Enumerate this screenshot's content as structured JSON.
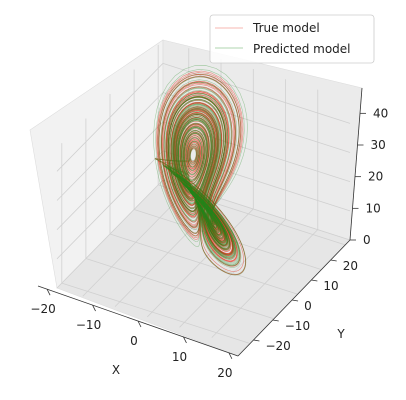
{
  "chart_data": {
    "type": "line",
    "projection": "3d",
    "title": "",
    "xlabel": "X",
    "ylabel": "Y",
    "zlabel": "",
    "xlim": [
      -22,
      22
    ],
    "ylim": [
      -28,
      30
    ],
    "zlim": [
      0,
      48
    ],
    "x_ticks": [
      -20,
      -10,
      0,
      10,
      20
    ],
    "y_ticks": [
      -20,
      -10,
      0,
      10,
      20
    ],
    "z_ticks": [
      0,
      10,
      20,
      30,
      40
    ],
    "x_tick_labels": [
      "−20",
      "−10",
      "0",
      "10",
      "20"
    ],
    "y_tick_labels": [
      "−20",
      "−10",
      "0",
      "10",
      "20"
    ],
    "z_tick_labels": [
      "0",
      "10",
      "20",
      "30",
      "40"
    ],
    "grid": true,
    "legend_position": "top-right",
    "series": [
      {
        "name": "True model",
        "color": "#e8321e",
        "system": "lorenz",
        "sigma": 10,
        "rho": 28,
        "beta": 2.6667,
        "start": [
          1,
          1,
          1
        ]
      },
      {
        "name": "Predicted model",
        "color": "#1a8a1a",
        "system": "lorenz",
        "sigma": 10,
        "rho": 28,
        "beta": 2.6667,
        "start": [
          1.05,
          0.95,
          1.1
        ]
      }
    ]
  }
}
